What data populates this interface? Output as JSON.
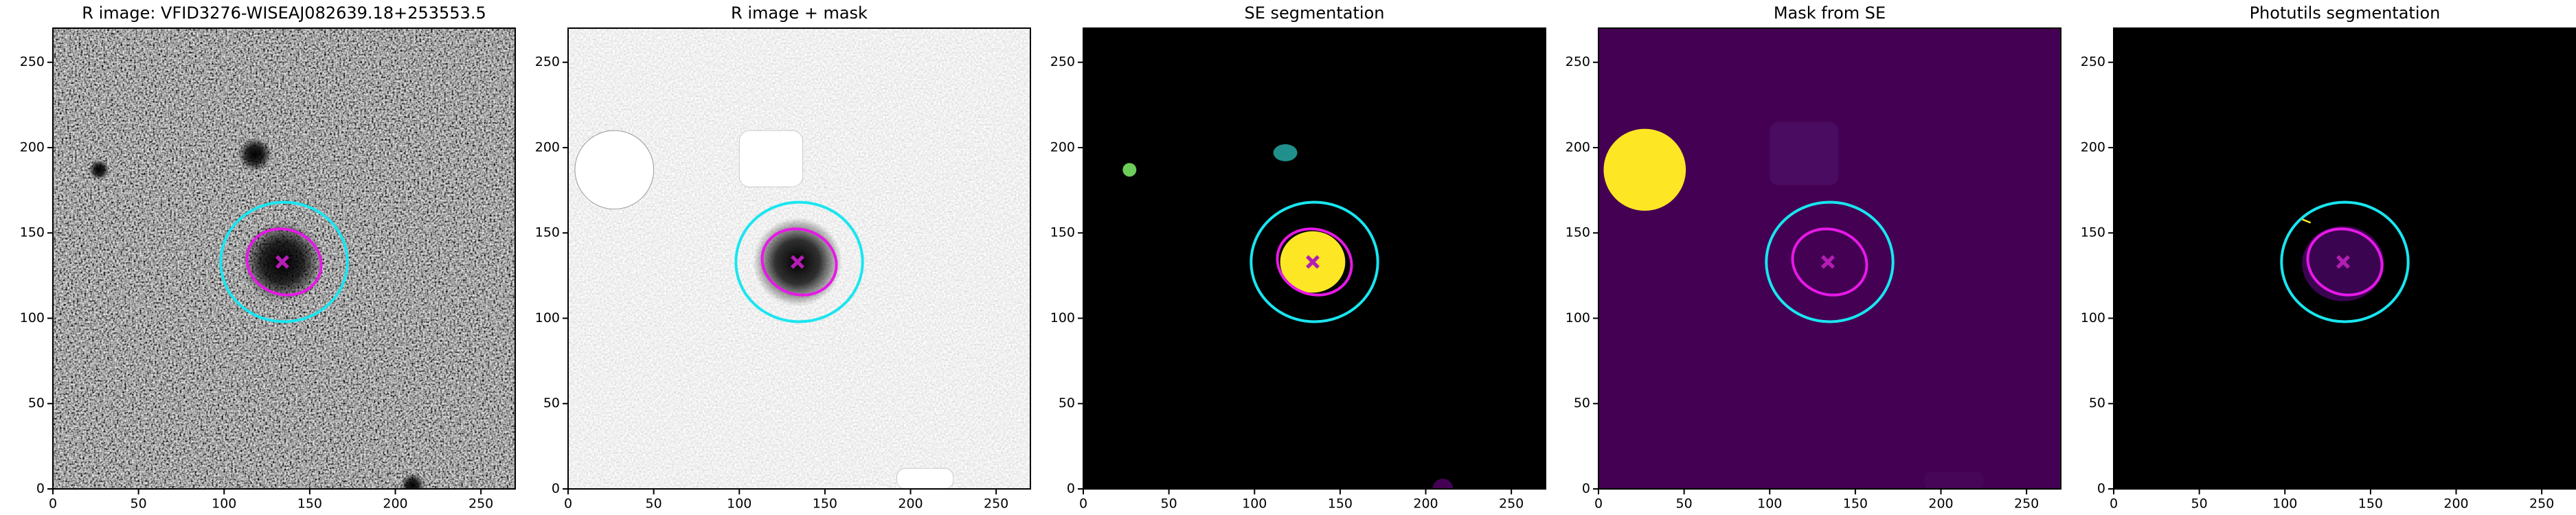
{
  "chart_data": [
    {
      "type": "image",
      "title": "R image: VFID3276-WISEAJ082639.18+253553.5",
      "xlim": [
        0,
        270
      ],
      "ylim": [
        0,
        270
      ],
      "xticks": [
        0,
        50,
        100,
        150,
        200,
        250
      ],
      "yticks": [
        0,
        50,
        100,
        150,
        200,
        250
      ]
    },
    {
      "type": "image",
      "title": "R image + mask",
      "xlim": [
        0,
        270
      ],
      "ylim": [
        0,
        270
      ],
      "xticks": [
        0,
        50,
        100,
        150,
        200,
        250
      ],
      "yticks": [
        0,
        50,
        100,
        150,
        200,
        250
      ]
    },
    {
      "type": "image",
      "title": "SE segmentation",
      "xlim": [
        0,
        270
      ],
      "ylim": [
        0,
        270
      ],
      "xticks": [
        0,
        50,
        100,
        150,
        200,
        250
      ],
      "yticks": [
        0,
        50,
        100,
        150,
        200,
        250
      ]
    },
    {
      "type": "image",
      "title": "Mask from SE",
      "xlim": [
        0,
        270
      ],
      "ylim": [
        0,
        270
      ],
      "xticks": [
        0,
        50,
        100,
        150,
        200,
        250
      ],
      "yticks": [
        0,
        50,
        100,
        150,
        200,
        250
      ]
    },
    {
      "type": "image",
      "title": "Photutils segmentation",
      "xlim": [
        0,
        270
      ],
      "ylim": [
        0,
        270
      ],
      "xticks": [
        0,
        50,
        100,
        150,
        200,
        250
      ],
      "yticks": [
        0,
        50,
        100,
        150,
        200,
        250
      ]
    }
  ]
}
